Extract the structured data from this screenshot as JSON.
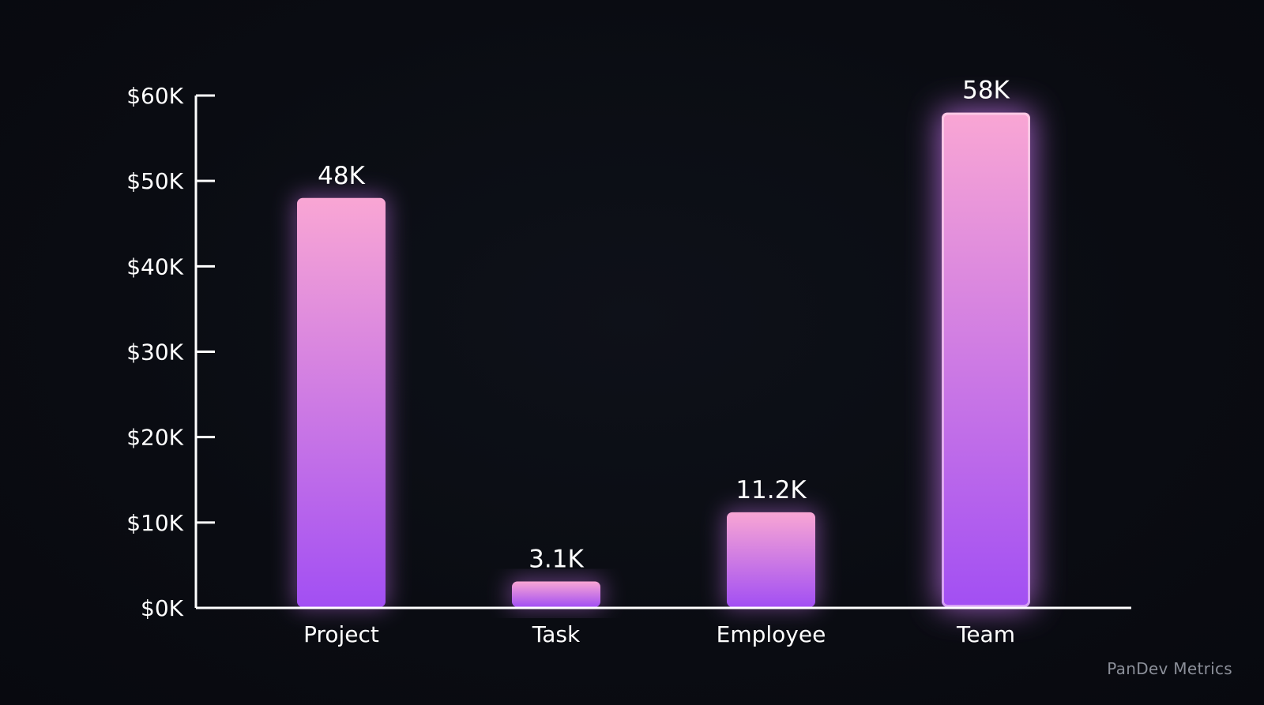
{
  "chart_data": {
    "type": "bar",
    "categories": [
      "Project",
      "Task",
      "Employee",
      "Team"
    ],
    "values": [
      48000,
      3100,
      11200,
      58000
    ],
    "value_labels": [
      "48K",
      "3.1K",
      "11.2K",
      "58K"
    ],
    "title": "",
    "xlabel": "",
    "ylabel": "",
    "ylim": [
      0,
      60000
    ],
    "yticks": [
      0,
      10000,
      20000,
      30000,
      40000,
      50000,
      60000
    ],
    "ytick_labels": [
      "$0K",
      "$10K",
      "$20K",
      "$30K",
      "$40K",
      "$50K",
      "$60K"
    ],
    "grid": false,
    "highlighted_category": "Team",
    "colors": {
      "bar_top": "#f9a6d4",
      "bar_bottom": "#a24ff3",
      "glow": "#c774f0",
      "axis": "#ffffff",
      "text": "#ffffff"
    }
  },
  "watermark": "PanDev Metrics"
}
